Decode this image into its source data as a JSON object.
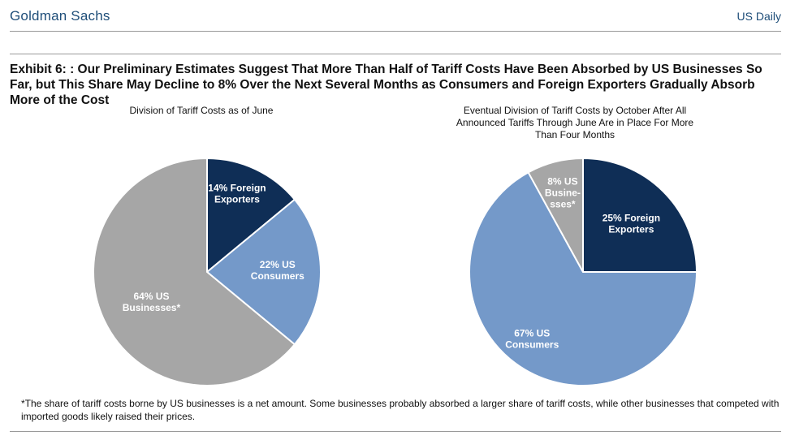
{
  "header": {
    "brand": "Goldman Sachs",
    "doc_title": "US Daily"
  },
  "exhibit_title": "Exhibit 6: : Our Preliminary Estimates Suggest That More Than Half of Tariff Costs Have Been Absorbed by US Businesses So Far, but This Share May Decline to 8% Over the Next Several Months as Consumers and Foreign Exporters Gradually Absorb More of the Cost",
  "colors": {
    "foreign_exporters": "#0f2e56",
    "us_consumers": "#7499c9",
    "us_businesses": "#a6a6a6",
    "brand": "#1f4e79"
  },
  "chart_data": [
    {
      "type": "pie",
      "title": "Division of Tariff Costs as of June",
      "slices": [
        {
          "name": "Foreign Exporters",
          "value": 14,
          "label_lines": [
            "14% Foreign",
            "Exporters"
          ]
        },
        {
          "name": "US Consumers",
          "value": 22,
          "label_lines": [
            "22% US",
            "Consumers"
          ]
        },
        {
          "name": "US Businesses",
          "value": 64,
          "label_lines": [
            "64% US",
            "Businesses*"
          ]
        }
      ]
    },
    {
      "type": "pie",
      "title": "Eventual Division of Tariff Costs by October After All Announced Tariffs Through June Are in Place For More Than Four Months",
      "slices": [
        {
          "name": "Foreign Exporters",
          "value": 25,
          "label_lines": [
            "25% Foreign",
            "Exporters"
          ]
        },
        {
          "name": "US Consumers",
          "value": 67,
          "label_lines": [
            "67% US",
            "Consumers"
          ]
        },
        {
          "name": "US Businesses",
          "value": 8,
          "label_lines": [
            "8% US",
            "Busine-",
            "sses*"
          ]
        }
      ]
    }
  ],
  "footnote": "*The share of tariff costs borne by US businesses is a net amount. Some businesses probably absorbed a larger share of tariff costs, while other businesses that competed with imported goods likely raised their prices."
}
